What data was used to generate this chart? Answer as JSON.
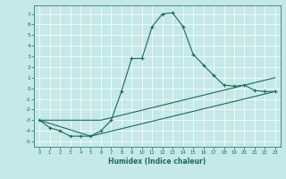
{
  "xlabel": "Humidex (Indice chaleur)",
  "xlim": [
    -0.5,
    23.5
  ],
  "ylim": [
    -5.5,
    7.8
  ],
  "yticks": [
    -5,
    -4,
    -3,
    -2,
    -1,
    0,
    1,
    2,
    3,
    4,
    5,
    6,
    7
  ],
  "xticks": [
    0,
    1,
    2,
    3,
    4,
    5,
    6,
    7,
    8,
    9,
    10,
    11,
    12,
    13,
    14,
    15,
    16,
    17,
    18,
    19,
    20,
    21,
    22,
    23
  ],
  "bg_color": "#c5e8e8",
  "line_color": "#1a6b5a",
  "grid_color": "#ffffff",
  "line1_x": [
    0,
    1,
    2,
    3,
    4,
    5,
    6,
    7,
    8,
    9,
    10,
    11,
    12,
    13,
    14,
    15,
    16,
    17,
    18,
    19,
    20,
    21,
    22,
    23
  ],
  "line1_y": [
    -3.0,
    -3.7,
    -4.0,
    -4.5,
    -4.5,
    -4.5,
    -4.0,
    -3.0,
    -0.3,
    2.8,
    2.8,
    5.8,
    7.0,
    7.1,
    5.8,
    3.2,
    2.2,
    1.2,
    0.3,
    0.2,
    0.3,
    -0.2,
    -0.3,
    -0.3
  ],
  "line2_x": [
    0,
    6,
    23
  ],
  "line2_y": [
    -3.0,
    -3.0,
    1.0
  ],
  "line3_x": [
    0,
    5,
    23
  ],
  "line3_y": [
    -3.0,
    -4.5,
    -0.3
  ]
}
